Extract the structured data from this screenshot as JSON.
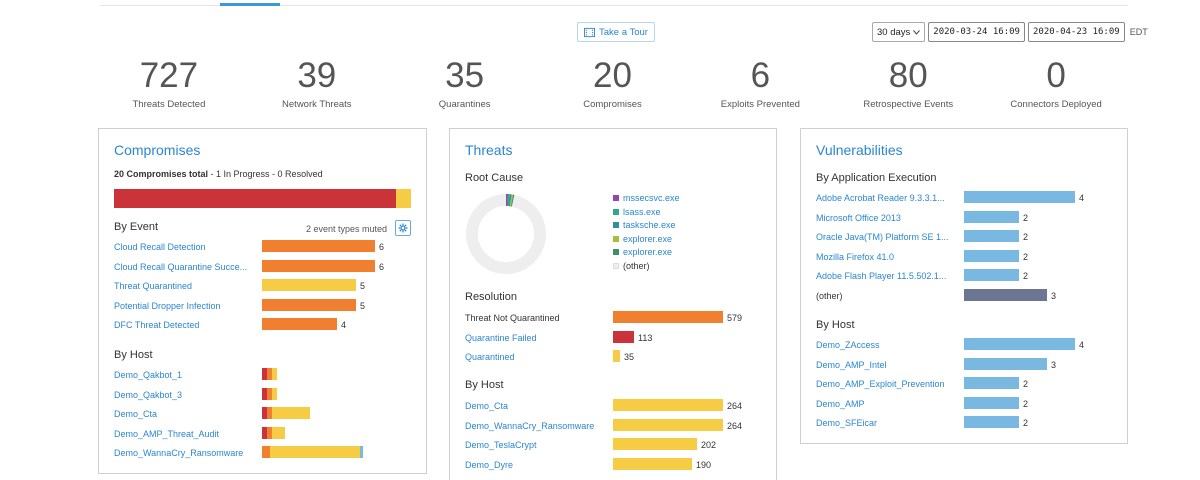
{
  "header": {
    "tour_label": "Take a Tour",
    "range_select": "30 days",
    "date_from": "2020-03-24 16:09",
    "date_to": "2020-04-23 16:09",
    "timezone": "EDT"
  },
  "stats": [
    {
      "value": "727",
      "label": "Threats Detected"
    },
    {
      "value": "39",
      "label": "Network Threats"
    },
    {
      "value": "35",
      "label": "Quarantines"
    },
    {
      "value": "20",
      "label": "Compromises"
    },
    {
      "value": "6",
      "label": "Exploits Prevented"
    },
    {
      "value": "80",
      "label": "Retrospective Events"
    },
    {
      "value": "0",
      "label": "Connectors Deployed"
    }
  ],
  "compromises": {
    "title": "Compromises",
    "total_bold": "20 Compromises total",
    "total_rest": " - 1 In Progress - 0 Resolved",
    "summary_fractions": {
      "red": 0.95,
      "yellow": 0.05
    },
    "by_event_label": "By Event",
    "muted_label": "2 event types muted",
    "events": [
      {
        "label": "Cloud Recall Detection",
        "value": "6",
        "n": 6,
        "color": "orange"
      },
      {
        "label": "Cloud Recall Quarantine Succe...",
        "value": "6",
        "n": 6,
        "color": "orange"
      },
      {
        "label": "Threat Quarantined",
        "value": "5",
        "n": 5,
        "color": "yellow"
      },
      {
        "label": "Potential Dropper Infection",
        "value": "5",
        "n": 5,
        "color": "orange"
      },
      {
        "label": "DFC Threat Detected",
        "value": "4",
        "n": 4,
        "color": "orange"
      }
    ],
    "by_host_label": "By Host",
    "hosts": [
      {
        "label": "Demo_Qakbot_1",
        "segments": [
          {
            "color": "red",
            "n": 1
          },
          {
            "color": "orange",
            "n": 1
          },
          {
            "color": "yellow",
            "n": 1
          }
        ]
      },
      {
        "label": "Demo_Qakbot_3",
        "segments": [
          {
            "color": "red",
            "n": 1
          },
          {
            "color": "orange",
            "n": 1
          },
          {
            "color": "yellow",
            "n": 1
          }
        ]
      },
      {
        "label": "Demo_Cta",
        "segments": [
          {
            "color": "red",
            "n": 1
          },
          {
            "color": "orange",
            "n": 1
          },
          {
            "color": "yellow",
            "n": 7.5
          }
        ]
      },
      {
        "label": "Demo_AMP_Threat_Audit",
        "segments": [
          {
            "color": "red",
            "n": 1
          },
          {
            "color": "orange",
            "n": 1
          },
          {
            "color": "yellow",
            "n": 2.5
          }
        ]
      },
      {
        "label": "Demo_WannaCry_Ransomware",
        "segments": [
          {
            "color": "orange",
            "n": 1.6
          },
          {
            "color": "yellow",
            "n": 18
          },
          {
            "color": "blue",
            "n": 0.6
          }
        ]
      }
    ]
  },
  "threats": {
    "title": "Threats",
    "root_cause_label": "Root Cause",
    "legend": [
      {
        "label": "mssecsvc.exe",
        "color": "#8e4aa8"
      },
      {
        "label": "lsass.exe",
        "color": "#2ea88a"
      },
      {
        "label": "tasksche.exe",
        "color": "#2f8f9d"
      },
      {
        "label": "explorer.exe",
        "color": "#a3c13a"
      },
      {
        "label": "explorer.exe",
        "color": "#3e8e6e"
      },
      {
        "label": "(other)",
        "color": "#eeeeee"
      }
    ],
    "resolution_label": "Resolution",
    "resolution": [
      {
        "label": "Threat Not Quarantined",
        "value": "579",
        "n": 579,
        "color": "orange",
        "link": false
      },
      {
        "label": "Quarantine Failed",
        "value": "113",
        "n": 113,
        "color": "red",
        "link": true
      },
      {
        "label": "Quarantined",
        "value": "35",
        "n": 35,
        "color": "yellow",
        "link": true
      }
    ],
    "by_host_label": "By Host",
    "hosts": [
      {
        "label": "Demo_Cta",
        "value": "264",
        "n": 264
      },
      {
        "label": "Demo_WannaCry_Ransomware",
        "value": "264",
        "n": 264
      },
      {
        "label": "Demo_TeslaCrypt",
        "value": "202",
        "n": 202
      },
      {
        "label": "Demo_Dyre",
        "value": "190",
        "n": 190
      }
    ]
  },
  "vulnerabilities": {
    "title": "Vulnerabilities",
    "by_app_label": "By Application Execution",
    "apps": [
      {
        "label": "Adobe Acrobat Reader 9.3.3.1...",
        "value": "4",
        "n": 4,
        "color": "blue",
        "link": true
      },
      {
        "label": "Microsoft Office 2013",
        "value": "2",
        "n": 2,
        "color": "blue",
        "link": true
      },
      {
        "label": "Oracle Java(TM) Platform SE 1...",
        "value": "2",
        "n": 2,
        "color": "blue",
        "link": true
      },
      {
        "label": "Mozilla Firefox 41.0",
        "value": "2",
        "n": 2,
        "color": "blue",
        "link": true
      },
      {
        "label": "Adobe Flash Player 11.5.502.1...",
        "value": "2",
        "n": 2,
        "color": "blue",
        "link": true
      },
      {
        "label": "(other)",
        "value": "3",
        "n": 3,
        "color": "slate",
        "link": false
      }
    ],
    "by_host_label": "By Host",
    "hosts": [
      {
        "label": "Demo_ZAccess",
        "value": "4",
        "n": 4
      },
      {
        "label": "Demo_AMP_Intel",
        "value": "3",
        "n": 3
      },
      {
        "label": "Demo_AMP_Exploit_Prevention",
        "value": "2",
        "n": 2
      },
      {
        "label": "Demo_AMP",
        "value": "2",
        "n": 2
      },
      {
        "label": "Demo_SFEicar",
        "value": "2",
        "n": 2
      }
    ]
  }
}
